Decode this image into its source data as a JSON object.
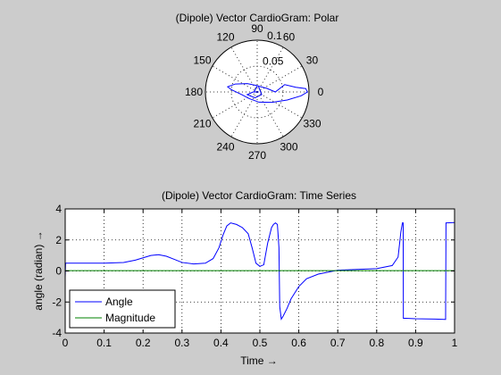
{
  "figure": {
    "background": "#cccccc"
  },
  "chart_data": [
    {
      "type": "polar",
      "title": "(Dipole) Vector CardioGram: Polar",
      "angle_ticks_deg": [
        0,
        30,
        60,
        90,
        120,
        150,
        180,
        210,
        240,
        270,
        300,
        330
      ],
      "angle_tick_labels": [
        "0",
        "30",
        "60",
        "90",
        "120",
        "150",
        "180",
        "210",
        "240",
        "270",
        "300",
        "330"
      ],
      "radial_ticks": [
        0.05,
        0.1
      ],
      "radial_tick_labels": [
        "0.05",
        "0.1"
      ],
      "rlim": [
        0,
        0.1
      ],
      "grid": true,
      "series": [
        {
          "color": "#0000ff",
          "points": [
            {
              "theta_deg": 0,
              "r": 0.002
            },
            {
              "theta_deg": 180,
              "r": 0.006
            },
            {
              "theta_deg": 90,
              "r": 0.012
            },
            {
              "theta_deg": 20,
              "r": 0.02
            },
            {
              "theta_deg": 0,
              "r": 0.035
            },
            {
              "theta_deg": 15,
              "r": 0.055
            },
            {
              "theta_deg": 7,
              "r": 0.075
            },
            {
              "theta_deg": 4,
              "r": 0.094
            },
            {
              "theta_deg": 0,
              "r": 0.097
            },
            {
              "theta_deg": 355,
              "r": 0.085
            },
            {
              "theta_deg": 345,
              "r": 0.06
            },
            {
              "theta_deg": 325,
              "r": 0.035
            },
            {
              "theta_deg": 280,
              "r": 0.02
            },
            {
              "theta_deg": 220,
              "r": 0.02
            },
            {
              "theta_deg": 190,
              "r": 0.03
            },
            {
              "theta_deg": 175,
              "r": 0.05
            },
            {
              "theta_deg": 170,
              "r": 0.058
            },
            {
              "theta_deg": 160,
              "r": 0.045
            },
            {
              "theta_deg": 140,
              "r": 0.025
            },
            {
              "theta_deg": 80,
              "r": 0.012
            },
            {
              "theta_deg": 330,
              "r": 0.01
            },
            {
              "theta_deg": 250,
              "r": 0.012
            },
            {
              "theta_deg": 195,
              "r": 0.02
            },
            {
              "theta_deg": 180,
              "r": 0.008
            },
            {
              "theta_deg": 0,
              "r": 0.003
            }
          ]
        }
      ]
    },
    {
      "type": "line",
      "title": "(Dipole) Vector CardioGram: Time Series",
      "xlabel": "Time →",
      "ylabel": "angle (radian) →",
      "xlim": [
        0,
        1
      ],
      "ylim": [
        -4,
        4
      ],
      "xticks": [
        0,
        0.1,
        0.2,
        0.3,
        0.4,
        0.5,
        0.6,
        0.7,
        0.8,
        0.9,
        1
      ],
      "xtick_labels": [
        "0",
        "0.1",
        "0.2",
        "0.3",
        "0.4",
        "0.5",
        "0.6",
        "0.7",
        "0.8",
        "0.9",
        "1"
      ],
      "yticks": [
        -4,
        -2,
        0,
        2,
        4
      ],
      "ytick_labels": [
        "-4",
        "-2",
        "0",
        "2",
        "4"
      ],
      "grid": true,
      "legend": {
        "position": "bottom-left",
        "entries": [
          "Angle",
          "Magnitude"
        ]
      },
      "series": [
        {
          "name": "Angle",
          "color": "#0000ff",
          "x": [
            0,
            0.001,
            0.003,
            0.1,
            0.15,
            0.18,
            0.2,
            0.22,
            0.24,
            0.26,
            0.28,
            0.3,
            0.33,
            0.36,
            0.38,
            0.395,
            0.405,
            0.415,
            0.425,
            0.44,
            0.455,
            0.47,
            0.48,
            0.49,
            0.5,
            0.51,
            0.52,
            0.53,
            0.535,
            0.54,
            0.545,
            0.549,
            0.551,
            0.555,
            0.56,
            0.57,
            0.58,
            0.6,
            0.62,
            0.65,
            0.68,
            0.7,
            0.75,
            0.8,
            0.84,
            0.855,
            0.862,
            0.866,
            0.868,
            0.8685,
            0.875,
            0.9,
            0.95,
            0.975,
            0.977,
            0.978,
            0.98,
            1
          ],
          "y": [
            -0.4,
            0.5,
            0.5,
            0.5,
            0.55,
            0.7,
            0.85,
            1.0,
            1.05,
            0.95,
            0.75,
            0.55,
            0.45,
            0.5,
            0.8,
            1.5,
            2.3,
            2.9,
            3.1,
            3.0,
            2.8,
            2.4,
            1.5,
            0.5,
            0.3,
            0.4,
            1.8,
            2.8,
            3.0,
            3.1,
            3.0,
            1.5,
            -2.3,
            -3.1,
            -2.9,
            -2.4,
            -1.8,
            -1.0,
            -0.5,
            -0.2,
            -0.05,
            0.05,
            0.1,
            0.15,
            0.35,
            0.9,
            2.5,
            3.1,
            3.1,
            -3.05,
            -3.05,
            -3.08,
            -3.1,
            -3.12,
            -3.12,
            3.1,
            3.1,
            3.12
          ]
        },
        {
          "name": "Magnitude",
          "color": "#008000",
          "x": [
            0,
            1
          ],
          "y": [
            0.02,
            0.02
          ]
        }
      ]
    }
  ]
}
